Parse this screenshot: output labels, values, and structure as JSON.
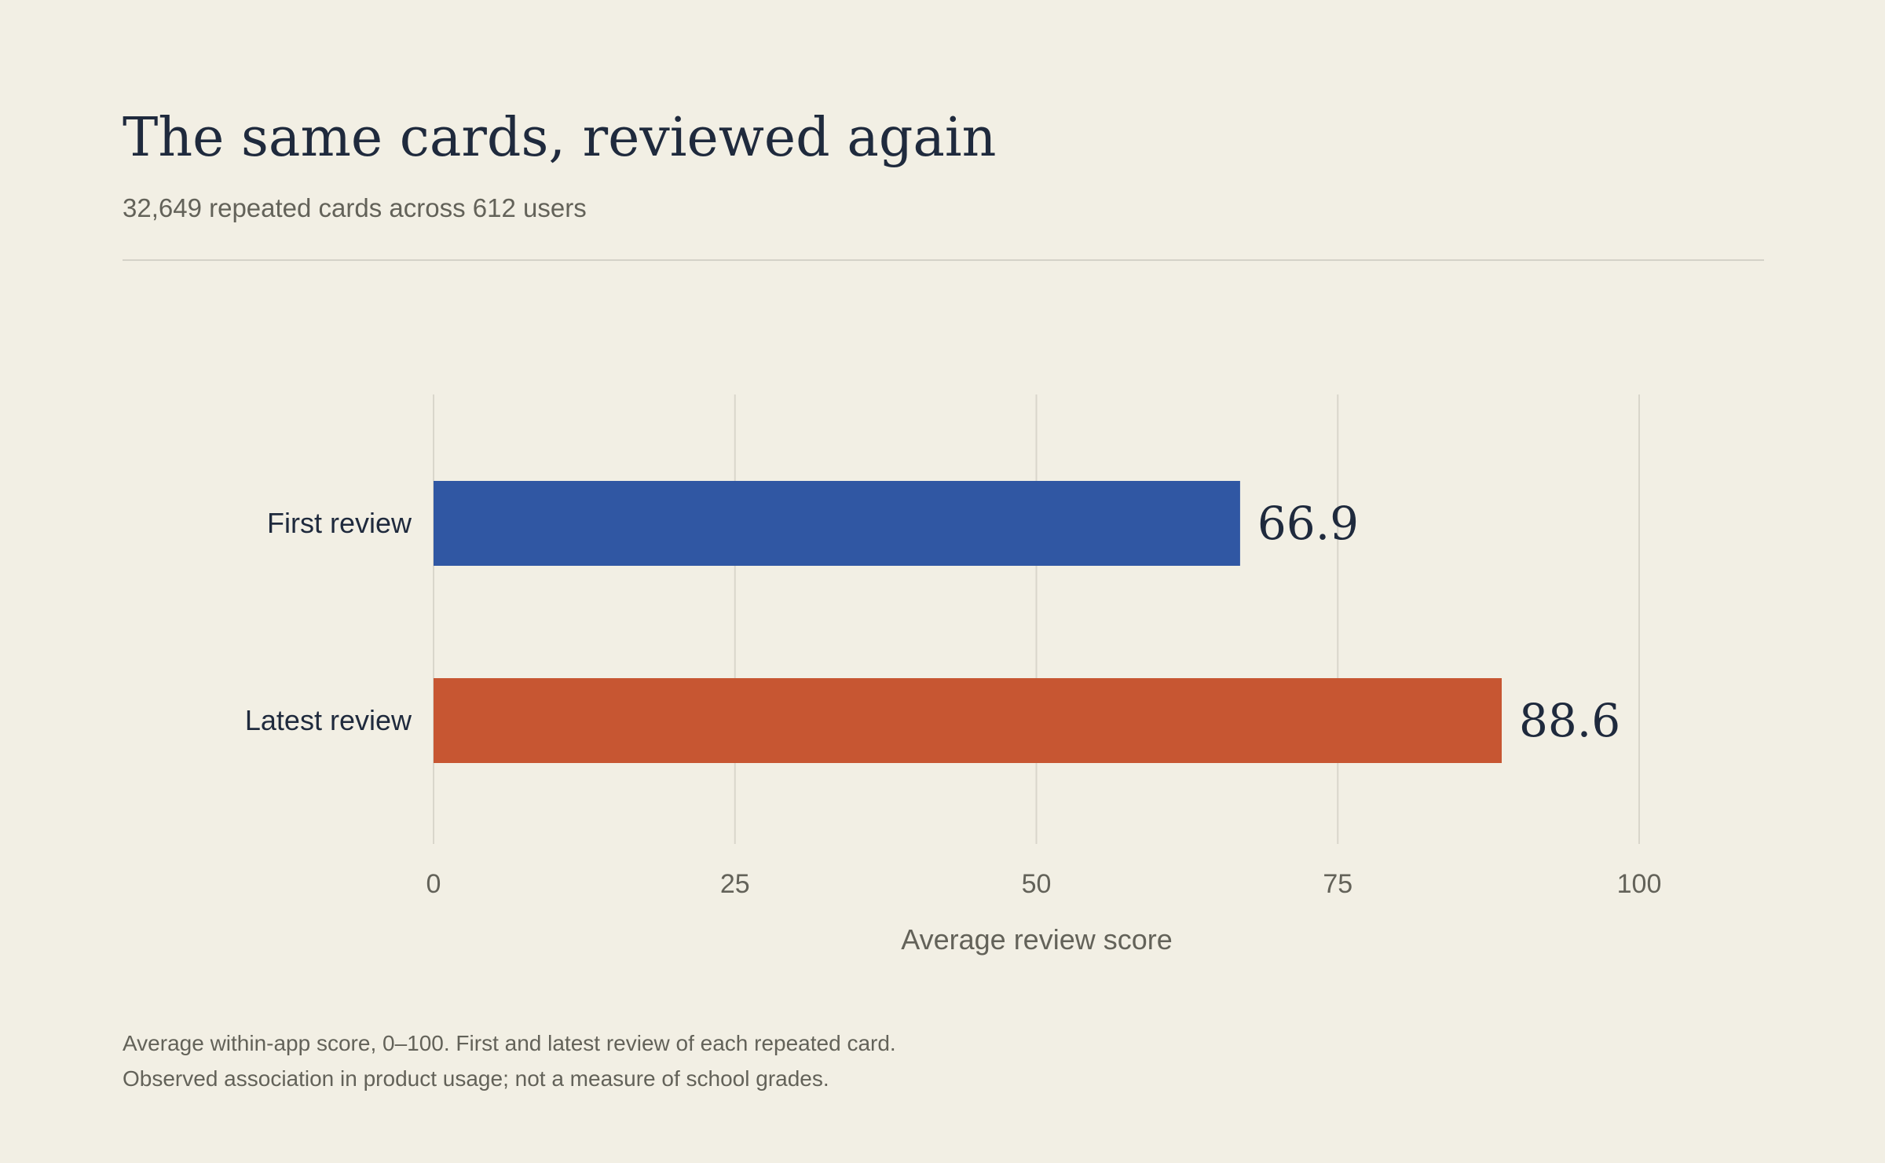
{
  "header": {
    "title": "The same cards, reviewed again",
    "subtitle": "32,649 repeated cards across 612 users"
  },
  "footnotes": [
    "Average within-app score, 0–100. First and latest review of each repeated card.",
    "Observed association in product usage; not a measure of school grades."
  ],
  "chart_data": {
    "type": "bar",
    "orientation": "horizontal",
    "categories": [
      "First review",
      "Latest review"
    ],
    "values": [
      66.9,
      88.6
    ],
    "value_labels": [
      "66.9",
      "88.6"
    ],
    "colors": [
      "#3057a3",
      "#c75632"
    ],
    "xlabel": "Average review score",
    "xlim": [
      0,
      100
    ],
    "xticks": [
      0,
      25,
      50,
      75,
      100
    ],
    "grid": "vertical"
  }
}
